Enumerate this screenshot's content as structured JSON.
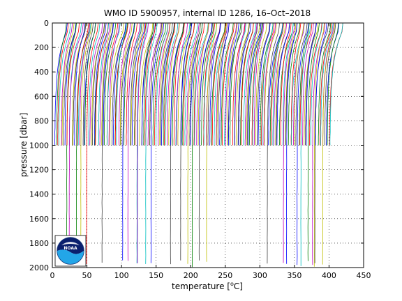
{
  "chart_data": {
    "type": "line",
    "title": "WMO ID 5900957, internal ID 1286, 16–Oct–2018",
    "xlabel_prefix": "temperature [",
    "xlabel_degree": "o",
    "xlabel_suffix": "C]",
    "ylabel": "pressure [dbar]",
    "xlim": [
      0,
      450
    ],
    "ylim": [
      0,
      2000
    ],
    "y_reversed": true,
    "x_ticks": [
      0,
      50,
      100,
      150,
      200,
      250,
      300,
      350,
      400,
      450
    ],
    "y_ticks": [
      0,
      200,
      400,
      600,
      800,
      1000,
      1200,
      1400,
      1600,
      1800,
      2000
    ],
    "grid": "dotted",
    "profile_offset_step": 2,
    "profile_count": 200,
    "shallow_profile_max_pressure": 1000,
    "deep_profile_max_pressure": 2000,
    "series_colors": [
      "#0000ff",
      "#008000",
      "#ff0000",
      "#00bfbf",
      "#bf00bf",
      "#bfbf00",
      "#404040"
    ],
    "logo": {
      "name": "noaa-logo",
      "text": "NOAA"
    }
  }
}
